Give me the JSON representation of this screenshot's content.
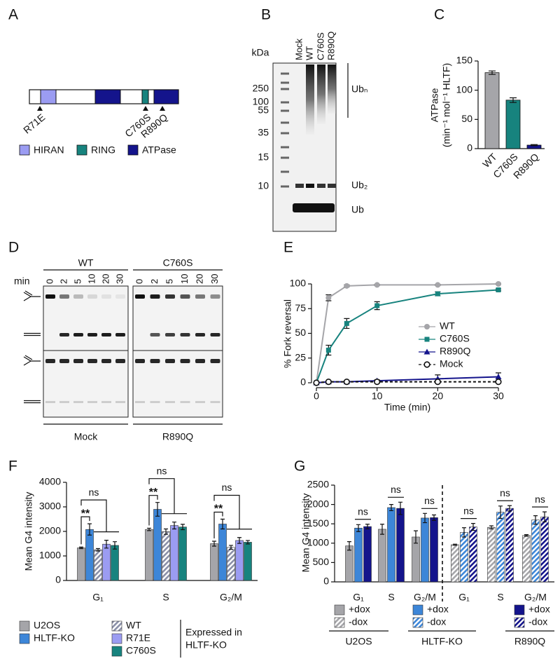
{
  "panel_a": {
    "label": "A",
    "mutations": [
      "R71E",
      "C760S",
      "R890Q"
    ],
    "legend": [
      {
        "name": "HIRAN",
        "color": "#9b9cf2"
      },
      {
        "name": "RING",
        "color": "#17837e"
      },
      {
        "name": "ATPase",
        "color": "#14148c"
      }
    ]
  },
  "panel_b": {
    "label": "B",
    "unit": "kDa",
    "lanes": [
      "Mock",
      "WT",
      "C760S",
      "R890Q"
    ],
    "markers": [
      "250",
      "100",
      "55",
      "35",
      "15",
      "10"
    ],
    "bands": [
      "Ubₙ",
      "Ub₂",
      "Ub"
    ]
  },
  "panel_d": {
    "label": "D",
    "min_label": "min",
    "times": [
      0,
      2,
      5,
      10,
      20,
      30
    ],
    "top": [
      "WT",
      "C760S"
    ],
    "bottom": [
      "Mock",
      "R890Q"
    ]
  },
  "chart_data": [
    {
      "type": "bar",
      "label": "C",
      "ylabel": [
        "ATPase",
        "(min⁻¹ mol⁻¹ HLTF)"
      ],
      "categories": [
        "WT",
        "C760S",
        "R890Q"
      ],
      "values": [
        130,
        83,
        6
      ],
      "errors": [
        3,
        4,
        1
      ],
      "colors": [
        "#a5a5a9",
        "#17837e",
        "#14148c"
      ],
      "ylim": [
        0,
        150
      ],
      "yticks": [
        0,
        50,
        100,
        150
      ]
    },
    {
      "type": "line",
      "label": "E",
      "ylabel": "% Fork reversal",
      "xlabel": "Time (min)",
      "x": [
        0,
        2,
        5,
        10,
        20,
        30
      ],
      "xlim": [
        0,
        30
      ],
      "xticks": [
        0,
        10,
        20,
        30
      ],
      "ylim": [
        0,
        100
      ],
      "yticks": [
        0,
        25,
        50,
        75,
        100
      ],
      "series": [
        {
          "name": "WT",
          "color": "#a5a5a9",
          "marker": "circle",
          "dashed": false,
          "values": [
            0,
            86,
            98,
            99,
            99,
            100
          ],
          "errors": [
            0,
            3,
            1,
            0.5,
            0.5,
            0.5
          ]
        },
        {
          "name": "C760S",
          "color": "#17837e",
          "marker": "square",
          "dashed": false,
          "values": [
            0,
            33,
            60,
            78,
            90,
            94
          ],
          "errors": [
            0,
            5,
            5,
            4,
            2,
            1
          ]
        },
        {
          "name": "R890Q",
          "color": "#14148c",
          "marker": "triangle",
          "dashed": false,
          "values": [
            0,
            1,
            1,
            2,
            4,
            6
          ],
          "errors": [
            0,
            1,
            1,
            1,
            4,
            4
          ]
        },
        {
          "name": "Mock",
          "color": "#111111",
          "marker": "open-circle",
          "dashed": true,
          "values": [
            0,
            1,
            1,
            1,
            1,
            1
          ],
          "errors": [
            0,
            0.5,
            0.5,
            0.5,
            0.5,
            0.5
          ]
        }
      ]
    },
    {
      "type": "grouped-bar",
      "label": "F",
      "ylabel": "Mean G4 intensity",
      "categories": [
        "G₁",
        "S",
        "G₂/M"
      ],
      "ylim": [
        0,
        4000
      ],
      "yticks": [
        0,
        1000,
        2000,
        3000,
        4000
      ],
      "series": [
        {
          "name": "U2OS",
          "color": "#a5a5a9",
          "hatched": false,
          "values": [
            1330,
            2080,
            1500
          ],
          "errors": [
            30,
            50,
            100
          ]
        },
        {
          "name": "HLTF-KO",
          "color": "#3d86d8",
          "hatched": false,
          "values": [
            2080,
            2900,
            2300
          ],
          "errors": [
            230,
            280,
            200
          ]
        },
        {
          "name": "WT",
          "color": "#8a8fa8",
          "hatched": true,
          "values": [
            1250,
            1990,
            1350
          ],
          "errors": [
            50,
            110,
            80
          ]
        },
        {
          "name": "R71E",
          "color": "#9b9cf2",
          "hatched": false,
          "values": [
            1480,
            2240,
            1630
          ],
          "errors": [
            160,
            140,
            120
          ]
        },
        {
          "name": "C760S",
          "color": "#17837e",
          "hatched": false,
          "values": [
            1430,
            2180,
            1560
          ],
          "errors": [
            150,
            110,
            70
          ]
        }
      ],
      "annotations": {
        "vs_ko": [
          "**",
          "**",
          "**"
        ],
        "vs_rescue": [
          "ns",
          "ns",
          "ns"
        ]
      },
      "legend_note": [
        "Expressed in",
        "HLTF-KO"
      ]
    },
    {
      "type": "paired-bar",
      "label": "G",
      "ylabel": "Mean G4 intensity",
      "categories": [
        "G₁",
        "S",
        "G₂/M"
      ],
      "ylim": [
        0,
        2500
      ],
      "yticks": [
        0,
        500,
        1000,
        1500,
        2000,
        2500
      ],
      "conditions": [
        {
          "label": "+dox",
          "hatched": false
        },
        {
          "label": "-dox",
          "hatched": true
        }
      ],
      "series": [
        {
          "name": "U2OS",
          "color": "#a5a5a9",
          "values": [
            [
              930,
              1360,
              1160
            ],
            [
              960,
              1410,
              1200
            ]
          ],
          "errors": [
            [
              110,
              130,
              160
            ],
            [
              15,
              40,
              20
            ]
          ]
        },
        {
          "name": "HLTF-KO",
          "color": "#3d86d8",
          "values": [
            [
              1390,
              1920,
              1650
            ],
            [
              1280,
              1800,
              1600
            ]
          ],
          "errors": [
            [
              90,
              80,
              120
            ],
            [
              120,
              160,
              110
            ]
          ]
        },
        {
          "name": "R890Q",
          "color": "#14148c",
          "values": [
            [
              1430,
              1900,
              1660
            ],
            [
              1420,
              1900,
              1680
            ]
          ],
          "errors": [
            [
              60,
              160,
              70
            ],
            [
              90,
              70,
              130
            ]
          ]
        }
      ],
      "annotations": [
        [
          "ns",
          "ns",
          "ns"
        ],
        [
          "ns",
          "ns",
          "ns"
        ]
      ]
    }
  ]
}
